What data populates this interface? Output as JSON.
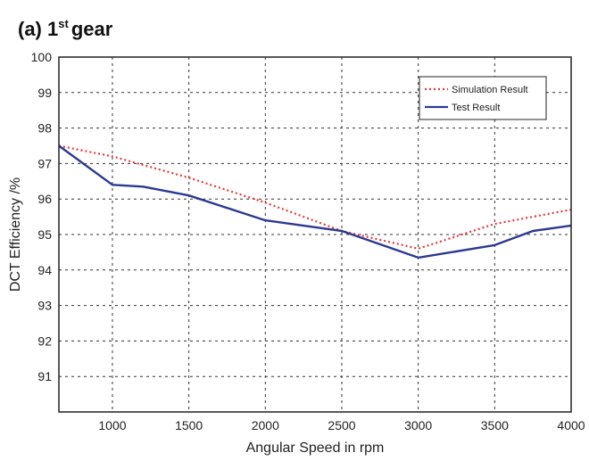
{
  "panel": {
    "label": "(a) 1",
    "label_sup": "st",
    "label_tail": "gear"
  },
  "chart_data": {
    "type": "line",
    "xlabel": "Angular Speed in rpm",
    "ylabel": "DCT Efficiency /%",
    "xlim": [
      650,
      4000
    ],
    "ylim": [
      90,
      100
    ],
    "xticks": [
      1000,
      1500,
      2000,
      2500,
      3000,
      3500,
      4000
    ],
    "yticks": [
      91,
      92,
      93,
      94,
      95,
      96,
      97,
      98,
      99,
      100
    ],
    "grid": true,
    "legend_position": "top-right",
    "series": [
      {
        "name": "Simulation Result",
        "color": "#e8383b",
        "line_style": "dotted",
        "x": [
          650,
          1000,
          1500,
          2000,
          2500,
          3000,
          3500,
          4000
        ],
        "y": [
          97.5,
          97.2,
          96.6,
          95.9,
          95.1,
          94.6,
          95.3,
          95.7
        ]
      },
      {
        "name": "Test Result",
        "color": "#2b3a8f",
        "line_style": "solid",
        "x": [
          650,
          1000,
          1200,
          1500,
          2000,
          2500,
          3000,
          3500,
          3750,
          4000
        ],
        "y": [
          97.5,
          96.4,
          96.35,
          96.1,
          95.4,
          95.1,
          94.35,
          94.7,
          95.1,
          95.25
        ]
      }
    ]
  }
}
